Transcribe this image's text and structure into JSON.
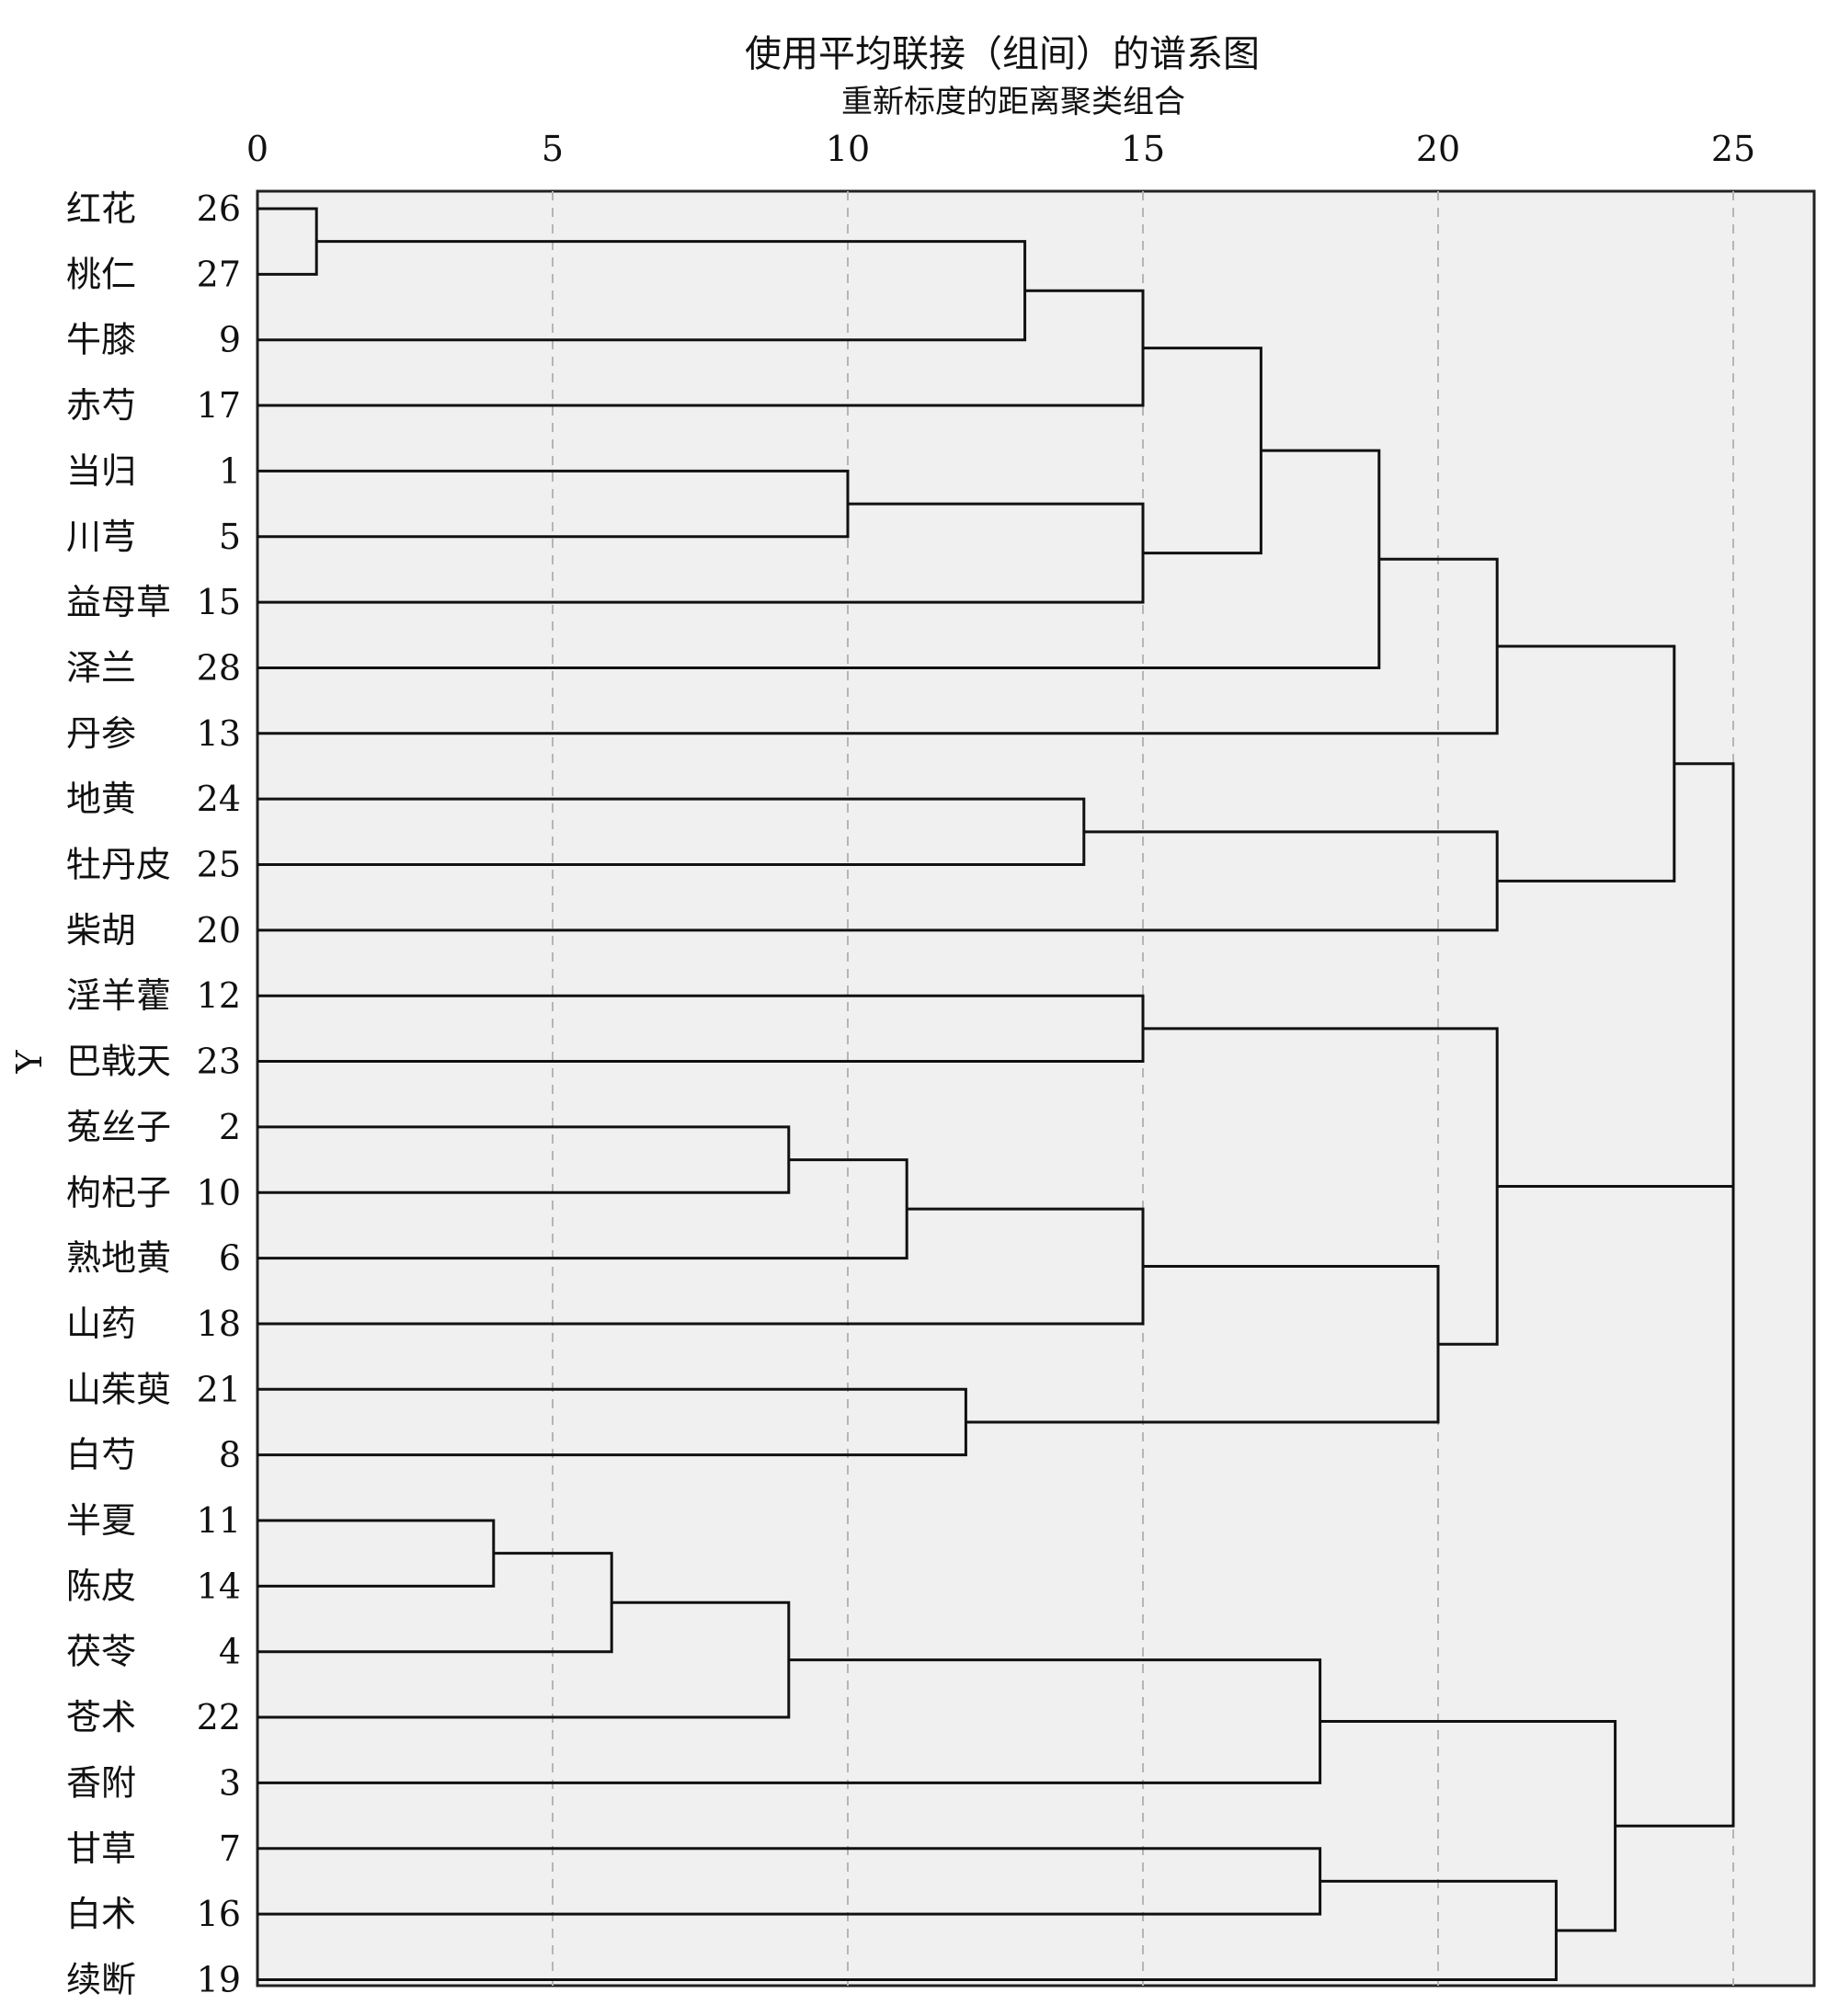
{
  "chart_data": {
    "type": "dendrogram",
    "title": "使用平均联接（组间）的谱系图",
    "subtitle": "重新标度的距离聚类组合",
    "ylabel": "Y",
    "x_ticks": [
      0,
      5,
      10,
      15,
      20,
      25
    ],
    "xlim": [
      0,
      26.3
    ],
    "leaves": [
      {
        "name": "红花",
        "id": "26"
      },
      {
        "name": "桃仁",
        "id": "27"
      },
      {
        "name": "牛膝",
        "id": "9"
      },
      {
        "name": "赤芍",
        "id": "17"
      },
      {
        "name": "当归",
        "id": "1"
      },
      {
        "name": "川芎",
        "id": "5"
      },
      {
        "name": "益母草",
        "id": "15"
      },
      {
        "name": "泽兰",
        "id": "28"
      },
      {
        "name": "丹参",
        "id": "13"
      },
      {
        "name": "地黄",
        "id": "24"
      },
      {
        "name": "牡丹皮",
        "id": "25"
      },
      {
        "name": "柴胡",
        "id": "20"
      },
      {
        "name": "淫羊藿",
        "id": "12"
      },
      {
        "name": "巴戟天",
        "id": "23"
      },
      {
        "name": "菟丝子",
        "id": "2"
      },
      {
        "name": "枸杞子",
        "id": "10"
      },
      {
        "name": "熟地黄",
        "id": "6"
      },
      {
        "name": "山药",
        "id": "18"
      },
      {
        "name": "山茱萸",
        "id": "21"
      },
      {
        "name": "白芍",
        "id": "8"
      },
      {
        "name": "半夏",
        "id": "11"
      },
      {
        "name": "陈皮",
        "id": "14"
      },
      {
        "name": "茯苓",
        "id": "4"
      },
      {
        "name": "苍术",
        "id": "22"
      },
      {
        "name": "香附",
        "id": "3"
      },
      {
        "name": "甘草",
        "id": "7"
      },
      {
        "name": "白术",
        "id": "16"
      },
      {
        "name": "续断",
        "id": "19"
      }
    ],
    "merges": [
      {
        "children": [
          "L0",
          "L1"
        ],
        "distance": 1
      },
      {
        "children": [
          "N0",
          "L2"
        ],
        "distance": 13
      },
      {
        "children": [
          "N1",
          "L3"
        ],
        "distance": 15
      },
      {
        "children": [
          "L4",
          "L5"
        ],
        "distance": 10
      },
      {
        "children": [
          "N3",
          "L6"
        ],
        "distance": 15
      },
      {
        "children": [
          "N2",
          "N4"
        ],
        "distance": 17
      },
      {
        "children": [
          "N5",
          "L7"
        ],
        "distance": 19
      },
      {
        "children": [
          "N6",
          "L8"
        ],
        "distance": 21
      },
      {
        "children": [
          "L9",
          "L10"
        ],
        "distance": 14
      },
      {
        "children": [
          "N8",
          "L11"
        ],
        "distance": 21
      },
      {
        "children": [
          "N7",
          "N9"
        ],
        "distance": 24
      },
      {
        "children": [
          "L12",
          "L13"
        ],
        "distance": 15
      },
      {
        "children": [
          "L14",
          "L15"
        ],
        "distance": 9
      },
      {
        "children": [
          "N12",
          "L16"
        ],
        "distance": 11
      },
      {
        "children": [
          "N13",
          "L17"
        ],
        "distance": 15
      },
      {
        "children": [
          "L18",
          "L19"
        ],
        "distance": 12
      },
      {
        "children": [
          "N14",
          "N15"
        ],
        "distance": 20
      },
      {
        "children": [
          "N11",
          "N16"
        ],
        "distance": 21
      },
      {
        "children": [
          "L20",
          "L21"
        ],
        "distance": 4
      },
      {
        "children": [
          "N18",
          "L22"
        ],
        "distance": 6
      },
      {
        "children": [
          "N19",
          "L23"
        ],
        "distance": 9
      },
      {
        "children": [
          "N20",
          "L24"
        ],
        "distance": 18
      },
      {
        "children": [
          "L25",
          "L26"
        ],
        "distance": 18
      },
      {
        "children": [
          "N22",
          "L27"
        ],
        "distance": 22
      },
      {
        "children": [
          "N21",
          "N23"
        ],
        "distance": 23
      },
      {
        "children": [
          "N17",
          "N24"
        ],
        "distance": 25
      },
      {
        "children": [
          "N10",
          "N25"
        ],
        "distance": 25
      }
    ]
  }
}
